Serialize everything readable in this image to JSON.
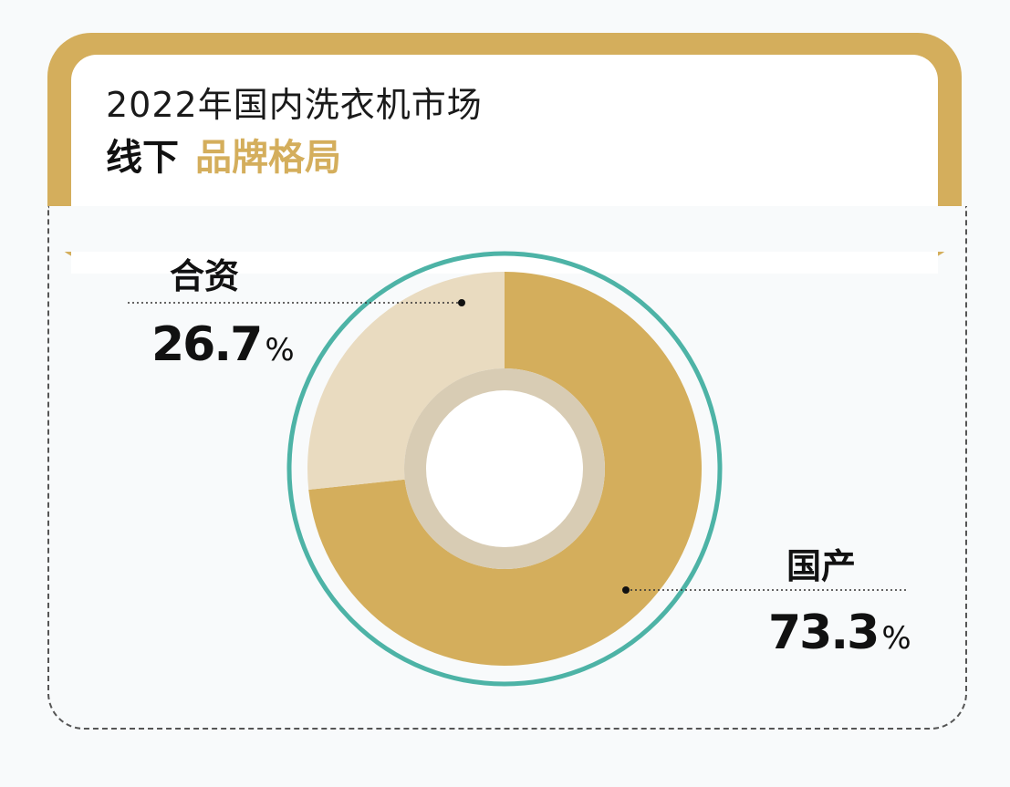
{
  "header": {
    "subtitle": "2022年国内洗衣机市场",
    "title_main": "线下",
    "title_accent": "品牌格局"
  },
  "colors": {
    "gold": "#d4ae5c",
    "light_gold": "#e9dbc0",
    "teal_ring": "#4db3a6"
  },
  "chart_data": {
    "type": "pie",
    "title": "",
    "categories": [
      "国产",
      "合资"
    ],
    "values": [
      73.3,
      26.7
    ],
    "unit": "%",
    "series": [
      {
        "name": "国产",
        "value": 73.3,
        "display": "73.3",
        "color": "#d4ae5c"
      },
      {
        "name": "合资",
        "value": 26.7,
        "display": "26.7",
        "color": "#e9dbc0"
      }
    ]
  },
  "labels": {
    "domestic_name": "国产",
    "domestic_value": "73.3",
    "jv_name": "合资",
    "jv_value": "26.7",
    "percent_sign": "%"
  }
}
